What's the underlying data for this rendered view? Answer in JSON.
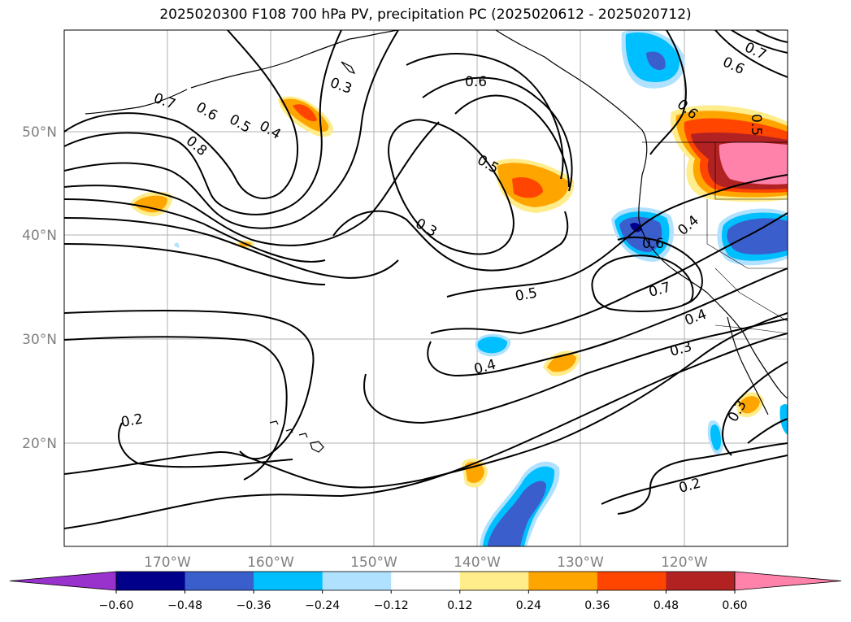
{
  "title": "2025020300 F108 700 hPa PV, precipitation PC (2025020612 - 2025020712)",
  "longitude_labels": [
    "170°W",
    "160°W",
    "150°W",
    "140°W",
    "130°W",
    "120°W"
  ],
  "latitude_labels": [
    "50°N",
    "40°N",
    "30°N",
    "20°N"
  ],
  "contour_labels": [
    "0.7",
    "0.6",
    "0.5",
    "0.4",
    "0.3",
    "0.8",
    "0.6",
    "0.5",
    "0.3",
    "0.5",
    "0.4",
    "0.6",
    "0.7",
    "0.4",
    "0.3",
    "0.2",
    "0.2",
    "0.3",
    "0.6",
    "0.4",
    "0.6",
    "0.7",
    "0.5",
    "0.3"
  ],
  "colorbar": {
    "tick_labels": [
      "−0.60",
      "−0.48",
      "−0.36",
      "−0.24",
      "−0.12",
      "0.12",
      "0.24",
      "0.36",
      "0.48",
      "0.60"
    ],
    "colors": [
      "#9932cc",
      "#00008b",
      "#3a5fcd",
      "#00bfff",
      "#b0e2ff",
      "#ffffff",
      "#ffec8b",
      "#ffa500",
      "#ff4500",
      "#b22222",
      "#ff82ab"
    ]
  },
  "colors": {
    "grid": "#b0b0b0",
    "contour": "#000000",
    "coast": "#000000"
  }
}
